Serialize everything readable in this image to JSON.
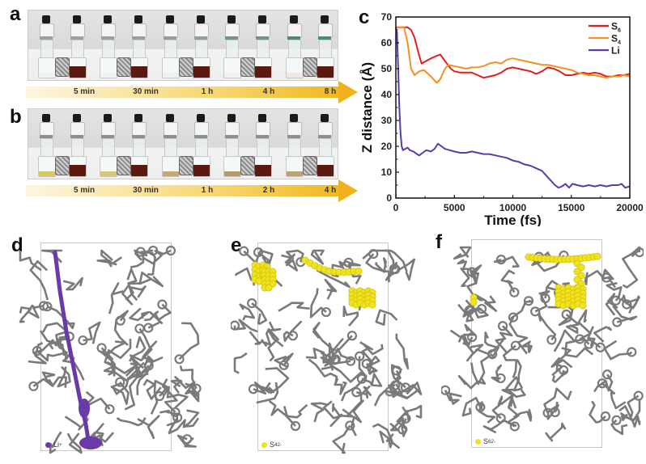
{
  "panels": {
    "a": {
      "label": "a",
      "time_labels": [
        "5 min",
        "30 min",
        "1 h",
        "4 h",
        "8 h"
      ],
      "left_vial_tint": [
        "#f0f2f2",
        "#f0f2f2",
        "#eff1ef",
        "#eef1ee",
        "#f3e7e3"
      ],
      "ring_color": [
        "#9aa0a0",
        "#9aa0a0",
        "#8fa09a",
        "#6f9585",
        "#4f8a72"
      ]
    },
    "b": {
      "label": "b",
      "time_labels": [
        "5 min",
        "30 min",
        "1 h",
        "2 h",
        "4 h"
      ],
      "left_vial_tint": [
        "#d8c860",
        "#d6c878",
        "#c7a873",
        "#b69a6a",
        "#b8a673"
      ],
      "ring_color": [
        "#8a9090",
        "#8a9090",
        "#8a9090",
        "#8a9090",
        "#8a9090"
      ]
    },
    "c": {
      "label": "c"
    },
    "d": {
      "label": "d",
      "legend": {
        "species": "Li",
        "charge": "+",
        "color": "#6a3aa8"
      }
    },
    "e": {
      "label": "e",
      "legend": {
        "species": "S",
        "subscript": "4",
        "charge": "2-",
        "color": "#f1e21f"
      }
    },
    "f": {
      "label": "f",
      "legend": {
        "species": "S",
        "subscript": "6",
        "charge": "2-",
        "color": "#f1e21f"
      }
    }
  },
  "colors": {
    "liquid_dark": "#5a1a10",
    "s6": "#e02020",
    "s4": "#f39125",
    "li": "#5b3ca8",
    "framework": "#7a7a7a"
  },
  "chart_data": {
    "type": "line",
    "title": "",
    "xlabel": "Time (fs)",
    "ylabel": "Z distance (Å)",
    "xlim": [
      0,
      20000
    ],
    "ylim": [
      0,
      70
    ],
    "xticks": [
      0,
      5000,
      10000,
      15000,
      20000
    ],
    "yticks": [
      0,
      10,
      20,
      30,
      40,
      50,
      60,
      70
    ],
    "xtick_labels": [
      "0",
      "5000",
      "10000",
      "15000",
      "20000"
    ],
    "ytick_labels": [
      "0",
      "10",
      "20",
      "30",
      "40",
      "50",
      "60",
      "70"
    ],
    "legend_position": "top-right",
    "grid": false,
    "series": [
      {
        "name": "S6",
        "label_main": "S",
        "label_sub": "6",
        "color": "#e02020",
        "x": [
          0,
          500,
          1000,
          1300,
          1600,
          2000,
          2200,
          2600,
          3000,
          3500,
          3800,
          4200,
          4700,
          5000,
          5500,
          6000,
          6500,
          7000,
          7500,
          8000,
          8500,
          9000,
          9500,
          10000,
          10500,
          11000,
          11500,
          12000,
          12500,
          13000,
          13500,
          14000,
          14500,
          15000,
          15500,
          16000,
          16500,
          17000,
          17500,
          18000,
          18500,
          19000,
          19500,
          20000
        ],
        "y": [
          66,
          66,
          66,
          65,
          62,
          55,
          52,
          53,
          54,
          55,
          55.5,
          53,
          50,
          49,
          48.5,
          48.5,
          48.5,
          47.5,
          46.5,
          47,
          47.5,
          48.5,
          50,
          50.5,
          50,
          49.5,
          49,
          48,
          49,
          50.5,
          50,
          49,
          47.5,
          47.5,
          48,
          48.5,
          48,
          48.5,
          48,
          47,
          47,
          47.5,
          47.5,
          48
        ]
      },
      {
        "name": "S4",
        "label_main": "S",
        "label_sub": "4",
        "color": "#f39125",
        "x": [
          0,
          300,
          700,
          1000,
          1300,
          1600,
          2000,
          2400,
          3000,
          3500,
          3800,
          4200,
          4500,
          5000,
          5500,
          6000,
          6500,
          7000,
          7500,
          8000,
          8500,
          9000,
          9500,
          10000,
          10500,
          11000,
          11500,
          12000,
          12500,
          13000,
          13500,
          14000,
          14500,
          15000,
          15500,
          16000,
          16500,
          17000,
          17500,
          18000,
          18500,
          19000,
          19500,
          20000
        ],
        "y": [
          66,
          66,
          66,
          60,
          50,
          47.5,
          49,
          49.5,
          47,
          44.5,
          46,
          50,
          51.5,
          51,
          50.5,
          50,
          50.5,
          50.5,
          51,
          52,
          52.5,
          52,
          53.5,
          54,
          53.5,
          53,
          52.5,
          52,
          51.5,
          51.5,
          51,
          50.5,
          50,
          49.5,
          48.5,
          48,
          47.5,
          47.5,
          47,
          46.5,
          47,
          47,
          47.5,
          47
        ]
      },
      {
        "name": "Li",
        "label_main": "Li",
        "label_sub": "",
        "color": "#5b3ca8",
        "x": [
          0,
          100,
          200,
          300,
          400,
          500,
          600,
          800,
          1000,
          1200,
          1500,
          1800,
          2000,
          2300,
          2600,
          3000,
          3300,
          3600,
          3900,
          4200,
          4600,
          5000,
          5500,
          6000,
          6500,
          7000,
          7500,
          8000,
          8500,
          9000,
          9500,
          10000,
          10500,
          11000,
          11500,
          12000,
          12500,
          13000,
          13300,
          13600,
          13900,
          14200,
          14500,
          14800,
          15100,
          15500,
          16000,
          16500,
          17000,
          17500,
          18000,
          18500,
          19000,
          19300,
          19600,
          20000
        ],
        "y": [
          66,
          64,
          50,
          35,
          25,
          20,
          18.5,
          19,
          19.5,
          18.5,
          18,
          17,
          16.5,
          17.5,
          18.5,
          18,
          19,
          21,
          20,
          19,
          18.5,
          18,
          17.5,
          17.5,
          18,
          17.5,
          17,
          17,
          16.5,
          16,
          15.5,
          14.5,
          14,
          13,
          12.5,
          11.5,
          10.5,
          8,
          6.5,
          5,
          4,
          4.5,
          5.5,
          4,
          5.5,
          5,
          4.5,
          5,
          4.5,
          5,
          4.5,
          5,
          5,
          5.5,
          4,
          4.5
        ]
      }
    ]
  }
}
